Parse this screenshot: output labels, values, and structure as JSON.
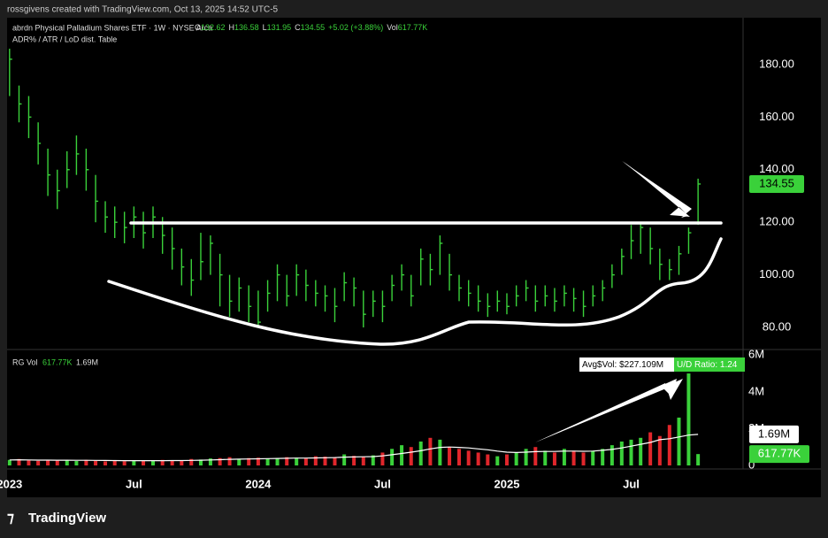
{
  "header": {
    "attribution": "rossgivens created with TradingView.com, Oct 13, 2025 14:52 UTC-5",
    "symbol": "abrdn Physical Palladium Shares ETF · 1W · NYSE Arca",
    "ohlc": [
      {
        "key": "O",
        "value": "132.62"
      },
      {
        "key": "H",
        "value": "136.58"
      },
      {
        "key": "L",
        "value": "131.95"
      },
      {
        "key": "C",
        "value": "134.55"
      }
    ],
    "change": "+5.02 (+3.88%)",
    "vol_key": "Vol",
    "vol": "617.77K",
    "indicator": "ADR% / ATR / LoD dist. Table"
  },
  "chart_data": [
    {
      "type": "ohlc",
      "color": "#3ad13a",
      "x": [
        2023,
        2023.038,
        2023.077,
        2023.115,
        2023.154,
        2023.192,
        2023.231,
        2023.269,
        2023.308,
        2023.346,
        2023.385,
        2023.423,
        2023.462,
        2023.5,
        2023.538,
        2023.577,
        2023.615,
        2023.654,
        2023.692,
        2023.731,
        2023.769,
        2023.808,
        2023.846,
        2023.885,
        2023.923,
        2023.962,
        2024,
        2024.038,
        2024.077,
        2024.115,
        2024.154,
        2024.192,
        2024.231,
        2024.269,
        2024.308,
        2024.346,
        2024.385,
        2024.423,
        2024.462,
        2024.5,
        2024.538,
        2024.577,
        2024.615,
        2024.654,
        2024.692,
        2024.731,
        2024.769,
        2024.808,
        2024.846,
        2024.885,
        2024.923,
        2024.962,
        2025,
        2025.038,
        2025.077,
        2025.115,
        2025.154,
        2025.192,
        2025.231,
        2025.269,
        2025.308,
        2025.346,
        2025.385,
        2025.423,
        2025.462,
        2025.5,
        2025.538,
        2025.577,
        2025.615,
        2025.654,
        2025.692,
        2025.731,
        2025.769
      ],
      "high": [
        186,
        172,
        168,
        158,
        148,
        140,
        147,
        153,
        148,
        138,
        128,
        126,
        124,
        126,
        124,
        126,
        122,
        118,
        110,
        106,
        116,
        115,
        108,
        100,
        99,
        96,
        94,
        98,
        104,
        100,
        104,
        102,
        98,
        96,
        95,
        101,
        99,
        94,
        94,
        94,
        100,
        104,
        100,
        110,
        108,
        115,
        108,
        100,
        98,
        96,
        93,
        94,
        93,
        96,
        98,
        96,
        96,
        95,
        96,
        95,
        94,
        96,
        98,
        104,
        110,
        119,
        120,
        118,
        110,
        106,
        111,
        118,
        136.58
      ],
      "low": [
        168,
        158,
        152,
        142,
        130,
        125,
        133,
        138,
        132,
        120,
        116,
        114,
        112,
        114,
        110,
        114,
        108,
        102,
        96,
        92,
        98,
        100,
        88,
        84,
        86,
        82,
        80,
        86,
        90,
        88,
        92,
        90,
        88,
        86,
        82,
        90,
        88,
        80,
        84,
        82,
        90,
        94,
        88,
        96,
        96,
        100,
        94,
        90,
        88,
        86,
        84,
        86,
        85,
        88,
        90,
        86,
        88,
        86,
        88,
        86,
        84,
        88,
        90,
        95,
        100,
        106,
        108,
        104,
        98,
        98,
        100,
        108,
        119
      ],
      "close": [
        182,
        165,
        160,
        150,
        138,
        132,
        140,
        146,
        140,
        128,
        122,
        120,
        118,
        122,
        116,
        122,
        115,
        110,
        103,
        98,
        105,
        112,
        100,
        90,
        95,
        88,
        82,
        93,
        100,
        92,
        100,
        96,
        93,
        92,
        88,
        97,
        95,
        85,
        90,
        88,
        96,
        100,
        92,
        106,
        102,
        112,
        100,
        95,
        93,
        90,
        88,
        90,
        88,
        92,
        95,
        90,
        92,
        90,
        93,
        91,
        88,
        92,
        95,
        100,
        107,
        113,
        118,
        110,
        104,
        102,
        108,
        116,
        134.55
      ],
      "xlim": [
        2022.99,
        2025.95
      ],
      "xticks": [
        {
          "value": 2023,
          "label": "2023"
        },
        {
          "value": 2023.5,
          "label": "Jul"
        },
        {
          "value": 2024,
          "label": "2024"
        },
        {
          "value": 2024.5,
          "label": "Jul"
        },
        {
          "value": 2025,
          "label": "2025"
        },
        {
          "value": 2025.5,
          "label": "Jul"
        }
      ],
      "ylim": [
        71.6,
        197.8
      ],
      "yticks": [
        {
          "value": 80,
          "label": "80.00"
        },
        {
          "value": 100,
          "label": "100.00"
        },
        {
          "value": 120,
          "label": "120.00"
        },
        {
          "value": 140,
          "label": "140.00"
        },
        {
          "value": 160,
          "label": "160.00"
        },
        {
          "value": 180,
          "label": "180.00"
        }
      ]
    },
    {
      "type": "volume",
      "title": "RG Vol",
      "legend_values": [
        "617.77K",
        "1.69M"
      ],
      "colors": {
        "up": "#3ad13a",
        "down": "#e0262b"
      },
      "series": [
        {
          "name": "Volume",
          "values": [
            300000,
            350000,
            280000,
            250000,
            300000,
            260000,
            280000,
            240000,
            300000,
            250000,
            220000,
            260000,
            230000,
            250000,
            280000,
            240000,
            300000,
            280000,
            260000,
            350000,
            320000,
            380000,
            400000,
            450000,
            350000,
            400000,
            420000,
            380000,
            400000,
            450000,
            420000,
            380000,
            500000,
            480000,
            450000,
            600000,
            520000,
            480000,
            550000,
            700000,
            900000,
            1100000,
            1000000,
            1300000,
            1500000,
            1400000,
            1000000,
            900000,
            800000,
            700000,
            600000,
            500000,
            600000,
            700000,
            900000,
            1000000,
            800000,
            700000,
            900000,
            800000,
            700000,
            800000,
            900000,
            1100000,
            1300000,
            1400000,
            1500000,
            1800000,
            1600000,
            2200000,
            2600000,
            5000000,
            617770
          ]
        },
        {
          "name": "Average",
          "color": "#ffffff",
          "values": [
            300000,
            310000,
            300000,
            290000,
            290000,
            285000,
            285000,
            280000,
            280000,
            275000,
            270000,
            265000,
            262000,
            260000,
            260000,
            258000,
            262000,
            265000,
            265000,
            275000,
            285000,
            300000,
            315000,
            330000,
            340000,
            350000,
            360000,
            370000,
            380000,
            390000,
            400000,
            400000,
            410000,
            420000,
            430000,
            450000,
            460000,
            470000,
            480000,
            520000,
            580000,
            650000,
            720000,
            800000,
            900000,
            980000,
            1000000,
            980000,
            950000,
            900000,
            850000,
            780000,
            720000,
            700000,
            720000,
            750000,
            760000,
            760000,
            780000,
            780000,
            770000,
            780000,
            820000,
            870000,
            950000,
            1050000,
            1150000,
            1250000,
            1400000,
            1450000,
            1550000,
            1650000,
            1690000
          ]
        }
      ],
      "last_labels": {
        "volume": "617.77K",
        "average": "1.69M"
      },
      "badges": [
        "Avg$Vol: $227.109M",
        "U/D Ratio: 1.24"
      ],
      "ylim": [
        0,
        6300000
      ],
      "yticks": [
        0,
        {
          "value": 2000000,
          "label": "2M"
        },
        {
          "value": 4000000,
          "label": "4M"
        },
        {
          "value": 6000000,
          "label": "6M"
        }
      ]
    }
  ],
  "footer": {
    "logo": "TradingView"
  }
}
